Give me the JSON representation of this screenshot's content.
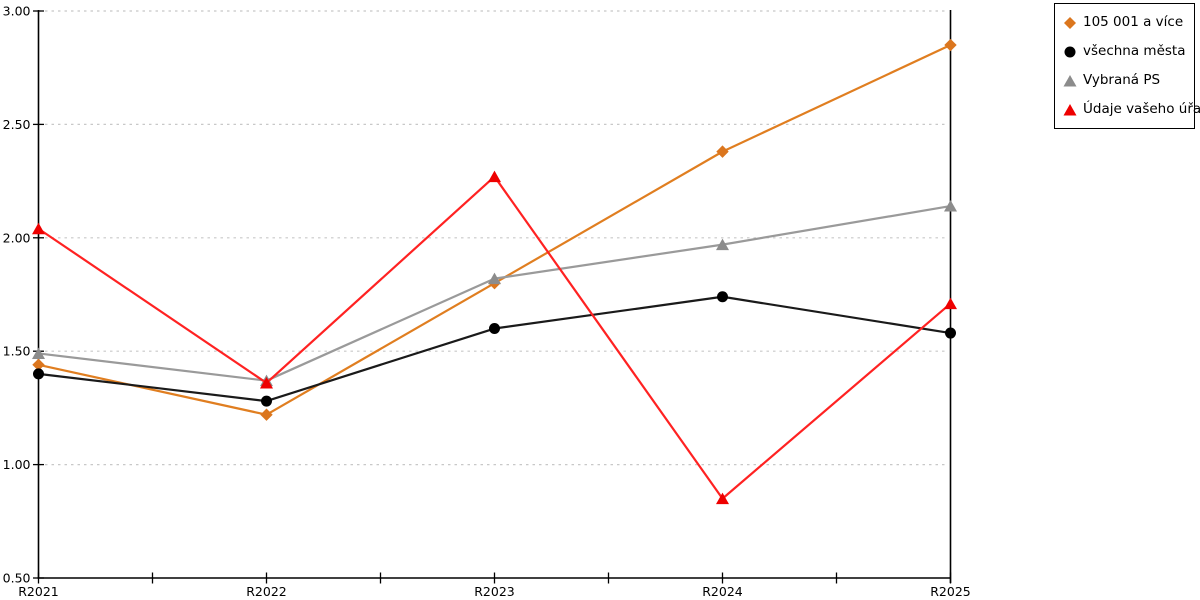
{
  "chart_data": {
    "type": "line",
    "title": "",
    "xlabel": "",
    "ylabel": "",
    "categories": [
      "R2021",
      "R2022",
      "R2023",
      "R2024",
      "R2025"
    ],
    "ylim": [
      0.5,
      3.0
    ],
    "ytick_step": 0.5,
    "yticks": [
      3.0,
      2.5,
      2.0,
      1.5,
      1.0,
      0.5
    ],
    "ytick_labels": [
      "3.00",
      "2.50",
      "2.00",
      "1.50",
      "1.00",
      "0.50"
    ],
    "grid": "horizontal-dashed",
    "legend_position": "top-right-outside",
    "series": [
      {
        "name": "105 001 a více",
        "marker": "diamond",
        "color": "#DB761E",
        "line_color": "#E07E20",
        "values": [
          1.44,
          1.22,
          1.8,
          2.38,
          2.85
        ]
      },
      {
        "name": "všechna města",
        "marker": "circle",
        "color": "#000000",
        "line_color": "#1A1A1A",
        "values": [
          1.4,
          1.28,
          1.6,
          1.74,
          1.58
        ]
      },
      {
        "name": "Vybraná PS",
        "marker": "triangle",
        "color": "#8C8C8C",
        "line_color": "#9A9A9A",
        "values": [
          1.49,
          1.37,
          1.82,
          1.97,
          2.14
        ]
      },
      {
        "name": "Údaje vašeho úřadu",
        "marker": "triangle",
        "color": "#EE0000",
        "line_color": "#FF2222",
        "values": [
          2.04,
          1.36,
          2.27,
          0.85,
          1.71
        ]
      }
    ],
    "colors": {
      "background": "#FFFFFF",
      "axis": "#000000",
      "grid": "#C8C8C8",
      "text": "#000000"
    }
  }
}
